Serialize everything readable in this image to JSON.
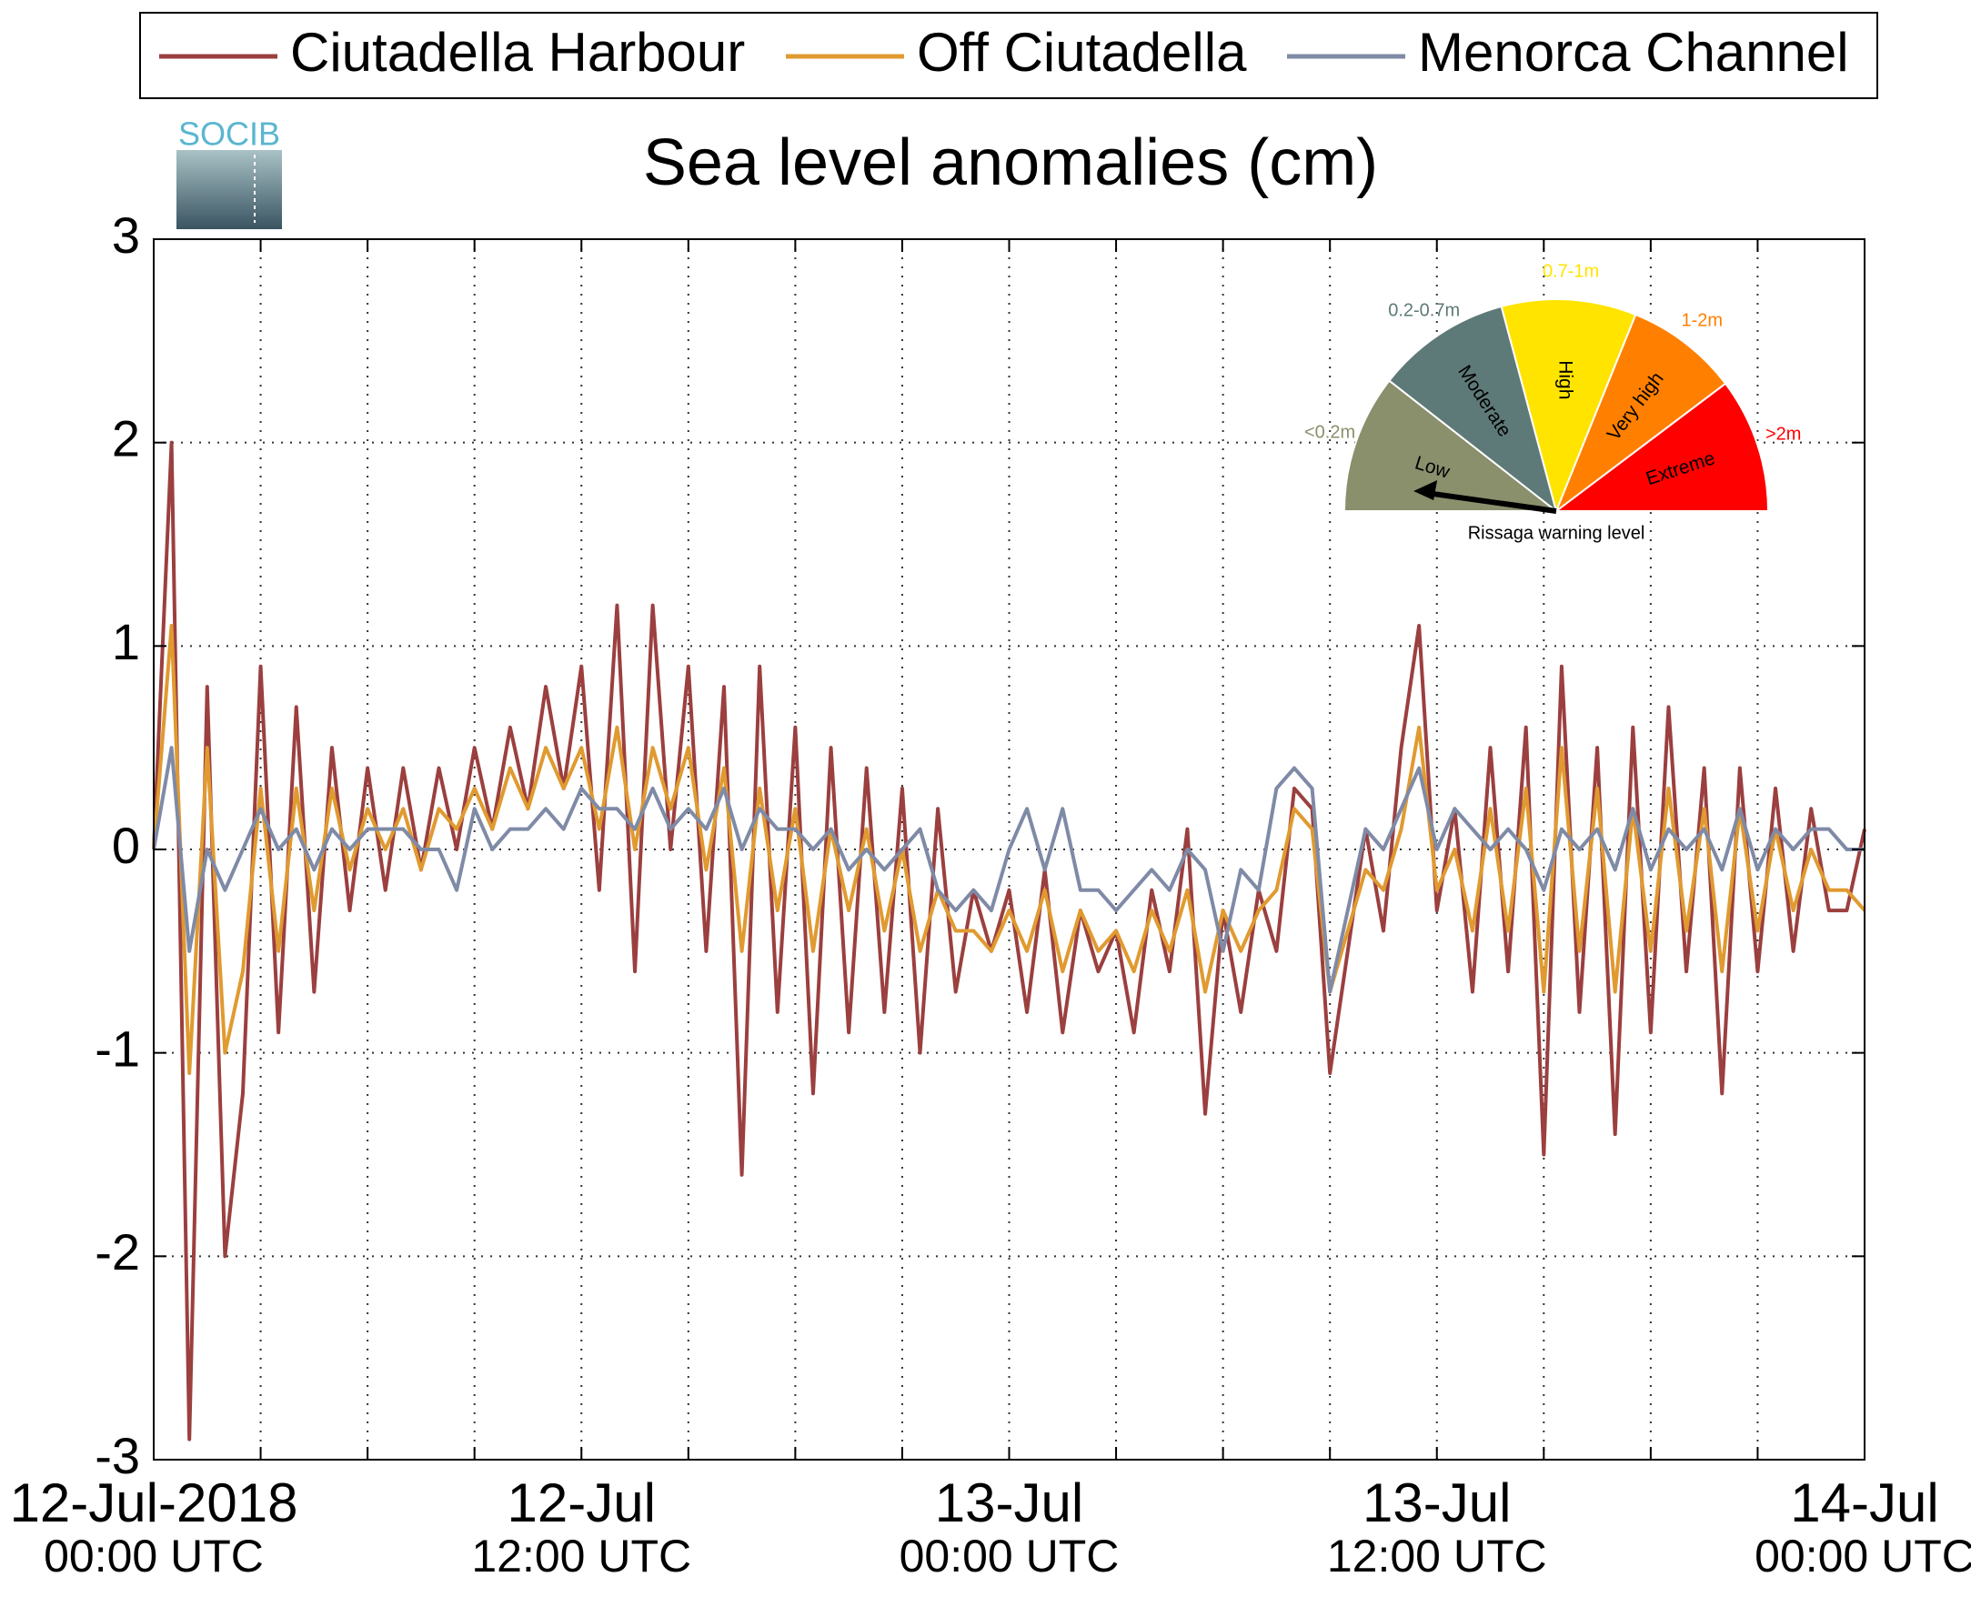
{
  "chart_data": {
    "type": "line",
    "title": "Sea level anomalies (cm)",
    "logo": "SOCIB",
    "x": [
      0,
      0.5,
      1,
      1.5,
      2,
      2.5,
      3,
      3.5,
      4,
      4.5,
      5,
      5.5,
      6,
      6.5,
      7,
      7.5,
      8,
      8.5,
      9,
      9.5,
      10,
      10.5,
      11,
      11.5,
      12,
      12.5,
      13,
      13.5,
      14,
      14.5,
      15,
      15.5,
      16,
      16.5,
      17,
      17.5,
      18,
      18.5,
      19,
      19.5,
      20,
      20.5,
      21,
      21.5,
      22,
      22.5,
      23,
      23.5,
      24,
      24.5,
      25,
      25.5,
      26,
      26.5,
      27,
      27.5,
      28,
      28.5,
      29,
      29.5,
      30,
      30.5,
      31,
      31.5,
      32,
      32.5,
      33,
      33.5,
      34,
      34.5,
      35,
      35.5,
      36,
      36.5,
      37,
      37.5,
      38,
      38.5,
      39,
      39.5,
      40,
      40.5,
      41,
      41.5,
      42,
      42.5,
      43,
      43.5,
      44,
      44.5,
      45,
      45.5,
      46,
      46.5,
      47,
      47.5,
      48
    ],
    "series": [
      {
        "name": "Ciutadella Harbour",
        "color": "#9b3f3f",
        "values": [
          0,
          2.0,
          -2.9,
          0.8,
          -2.0,
          -1.2,
          0.9,
          -0.9,
          0.7,
          -0.7,
          0.5,
          -0.3,
          0.4,
          -0.2,
          0.4,
          -0.1,
          0.4,
          0.0,
          0.5,
          0.1,
          0.6,
          0.2,
          0.8,
          0.3,
          0.9,
          -0.2,
          1.2,
          -0.6,
          1.2,
          0.0,
          0.9,
          -0.5,
          0.8,
          -1.6,
          0.9,
          -0.8,
          0.6,
          -1.2,
          0.5,
          -0.9,
          0.4,
          -0.8,
          0.3,
          -1.0,
          0.2,
          -0.7,
          -0.2,
          -0.5,
          -0.2,
          -0.8,
          -0.1,
          -0.9,
          -0.3,
          -0.6,
          -0.4,
          -0.9,
          -0.2,
          -0.6,
          0.1,
          -1.3,
          -0.3,
          -0.8,
          -0.2,
          -0.5,
          0.3,
          0.2,
          -1.1,
          -0.5,
          0.1,
          -0.4,
          0.5,
          1.1,
          -0.3,
          0.2,
          -0.7,
          0.5,
          -0.6,
          0.6,
          -1.5,
          0.9,
          -0.8,
          0.5,
          -1.4,
          0.6,
          -0.9,
          0.7,
          -0.6,
          0.4,
          -1.2,
          0.4,
          -0.6,
          0.3,
          -0.5,
          0.2,
          -0.3,
          -0.3,
          0.1
        ]
      },
      {
        "name": "Off Ciutadella",
        "color": "#e09a30",
        "values": [
          0,
          1.1,
          -1.1,
          0.5,
          -1.0,
          -0.6,
          0.3,
          -0.5,
          0.3,
          -0.3,
          0.3,
          -0.1,
          0.2,
          0.0,
          0.2,
          -0.1,
          0.2,
          0.1,
          0.3,
          0.1,
          0.4,
          0.2,
          0.5,
          0.3,
          0.5,
          0.1,
          0.6,
          0.0,
          0.5,
          0.2,
          0.5,
          -0.1,
          0.4,
          -0.5,
          0.3,
          -0.3,
          0.2,
          -0.5,
          0.1,
          -0.3,
          0.1,
          -0.4,
          0.0,
          -0.5,
          -0.2,
          -0.4,
          -0.4,
          -0.5,
          -0.3,
          -0.5,
          -0.2,
          -0.6,
          -0.3,
          -0.5,
          -0.4,
          -0.6,
          -0.3,
          -0.5,
          -0.2,
          -0.7,
          -0.3,
          -0.5,
          -0.3,
          -0.2,
          0.2,
          0.1,
          -0.7,
          -0.4,
          -0.1,
          -0.2,
          0.1,
          0.6,
          -0.2,
          0.0,
          -0.4,
          0.2,
          -0.4,
          0.3,
          -0.7,
          0.5,
          -0.5,
          0.3,
          -0.7,
          0.2,
          -0.5,
          0.3,
          -0.4,
          0.2,
          -0.6,
          0.2,
          -0.4,
          0.1,
          -0.3,
          0.0,
          -0.2,
          -0.2,
          -0.3
        ]
      },
      {
        "name": "Menorca Channel",
        "color": "#7f8aa6",
        "values": [
          0,
          0.5,
          -0.5,
          0.0,
          -0.2,
          0.0,
          0.2,
          0.0,
          0.1,
          -0.1,
          0.1,
          0.0,
          0.1,
          0.1,
          0.1,
          0.0,
          0.0,
          -0.2,
          0.2,
          0.0,
          0.1,
          0.1,
          0.2,
          0.1,
          0.3,
          0.2,
          0.2,
          0.1,
          0.3,
          0.1,
          0.2,
          0.1,
          0.3,
          0.0,
          0.2,
          0.1,
          0.1,
          0.0,
          0.1,
          -0.1,
          0.0,
          -0.1,
          0.0,
          0.1,
          -0.2,
          -0.3,
          -0.2,
          -0.3,
          0.0,
          0.2,
          -0.1,
          0.2,
          -0.2,
          -0.2,
          -0.3,
          -0.2,
          -0.1,
          -0.2,
          0.0,
          -0.1,
          -0.5,
          -0.1,
          -0.2,
          0.3,
          0.4,
          0.3,
          -0.7,
          -0.3,
          0.1,
          0.0,
          0.2,
          0.4,
          0.0,
          0.2,
          0.1,
          0.0,
          0.1,
          0.0,
          -0.2,
          0.1,
          0.0,
          0.1,
          -0.1,
          0.2,
          -0.1,
          0.1,
          0.0,
          0.1,
          -0.1,
          0.2,
          -0.1,
          0.1,
          0.0,
          0.1,
          0.1,
          0.0,
          0.0
        ]
      }
    ],
    "xlim": [
      0,
      48
    ],
    "xticks": [
      {
        "value": 0,
        "label": [
          "12-Jul-2018",
          "00:00 UTC"
        ]
      },
      {
        "value": 12,
        "label": [
          "12-Jul",
          "12:00 UTC"
        ]
      },
      {
        "value": 24,
        "label": [
          "13-Jul",
          "00:00 UTC"
        ]
      },
      {
        "value": 36,
        "label": [
          "13-Jul",
          "12:00 UTC"
        ]
      },
      {
        "value": 48,
        "label": [
          "14-Jul",
          "00:00 UTC"
        ]
      }
    ],
    "xminorticks": [
      3,
      6,
      9,
      15,
      18,
      21,
      27,
      30,
      33,
      39,
      42,
      45
    ],
    "ylim": [
      -3,
      3
    ],
    "yticks": [
      -3,
      -2,
      -1,
      0,
      1,
      2,
      3
    ],
    "grid": true,
    "legend": "top",
    "gauge": {
      "title": "Rissaga warning level",
      "levels": [
        {
          "name": "Low",
          "range": "<0.2m",
          "color": "#8a8f6c"
        },
        {
          "name": "Moderate",
          "range": "0.2-0.7m",
          "color": "#5e7a78"
        },
        {
          "name": "High",
          "range": "0.7-1m",
          "color": "#ffe400"
        },
        {
          "name": "Very high",
          "range": "1-2m",
          "color": "#ff8000"
        },
        {
          "name": "Extreme",
          "range": ">2m",
          "color": "#ff0000"
        }
      ]
    }
  }
}
